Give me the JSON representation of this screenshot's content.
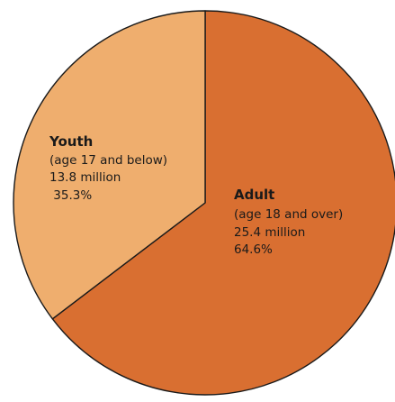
{
  "chart_data": {
    "type": "pie",
    "slices": [
      {
        "name": "Adult",
        "detail": "(age 18 and over)",
        "amount_label": "25.4 million",
        "percent_label": "64.6%",
        "value": 64.6,
        "color": "#D96F31"
      },
      {
        "name": "Youth",
        "detail": "(age 17 and below)",
        "amount_label": "13.8 million",
        "percent_label": " 35.3%",
        "value": 35.3,
        "color": "#EFAE6E"
      }
    ],
    "stroke_color": "#1a1a1a"
  }
}
